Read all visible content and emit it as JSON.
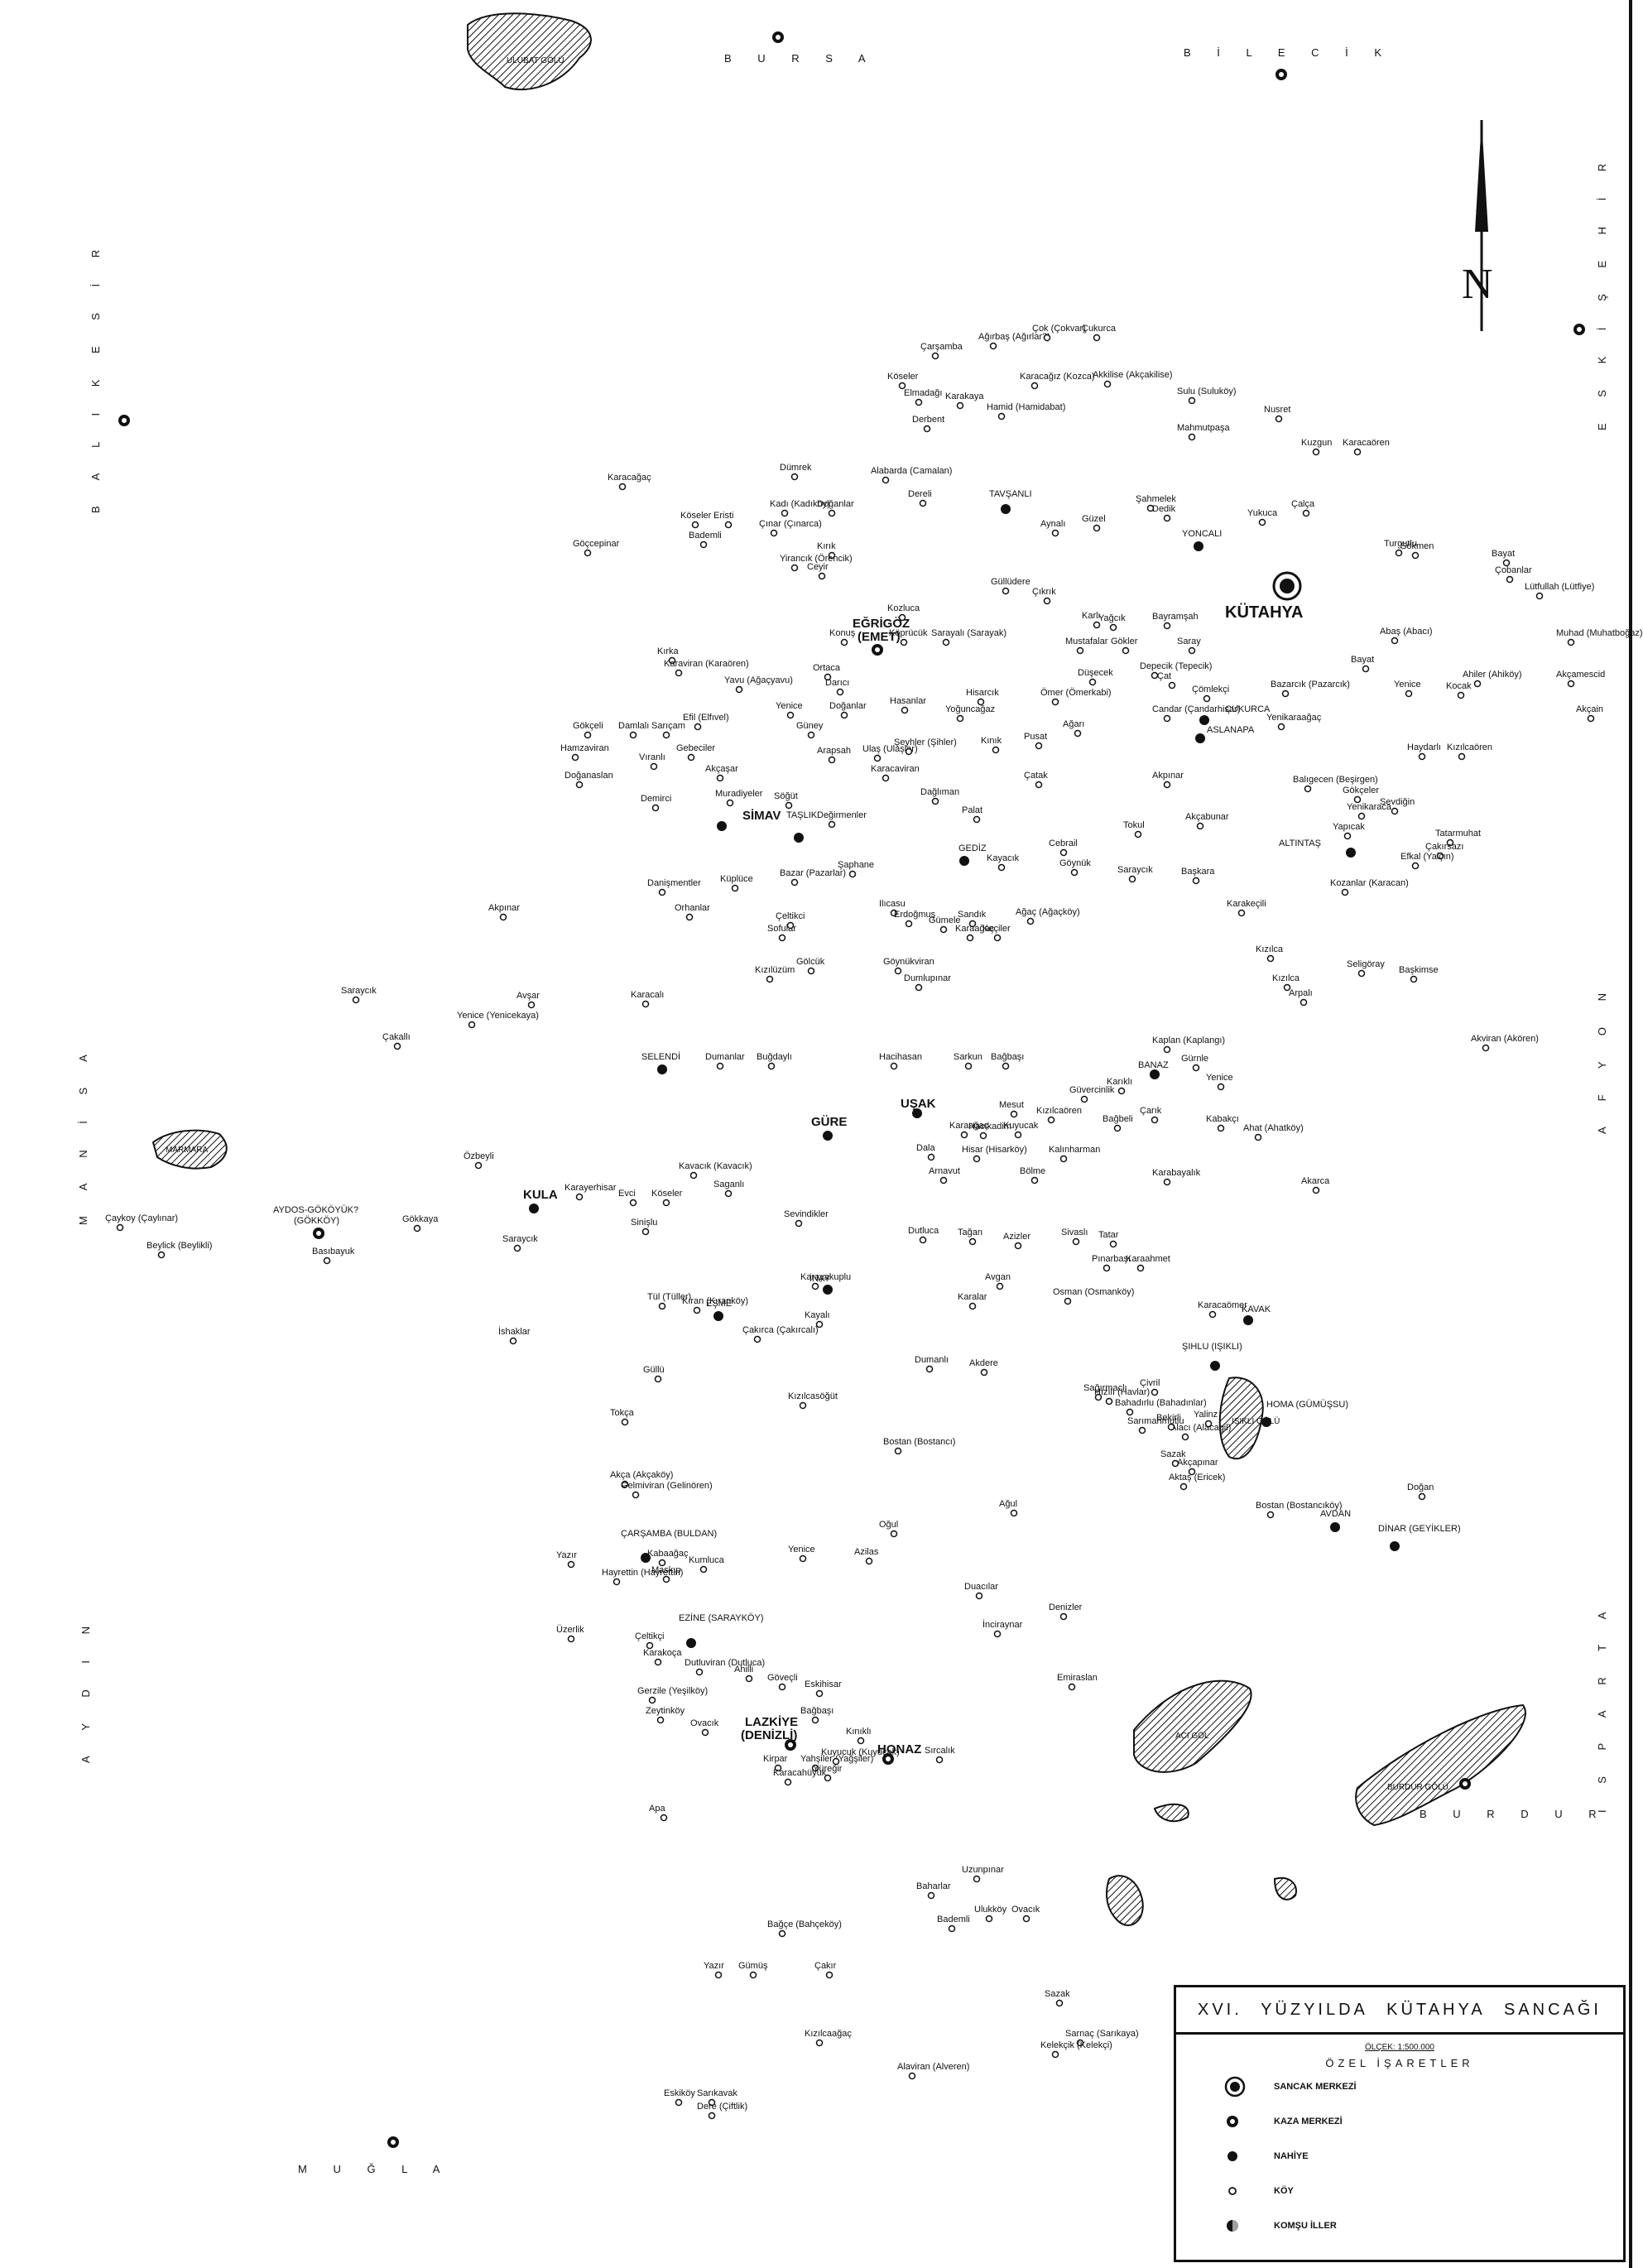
{
  "title_parts": [
    "XVI.",
    "YÜZYILDA",
    "KÜTAHYA",
    "SANCAĞI"
  ],
  "scale": "ÖLÇEK: 1:500.000",
  "legend_heading": "ÖZEL İŞARETLER",
  "legend_items": [
    {
      "symbol": "sancak-merkezi",
      "label": "SANCAK MERKEZİ"
    },
    {
      "symbol": "kaza-merkezi",
      "label": "KAZA MERKEZİ"
    },
    {
      "symbol": "nahiye",
      "label": "NAHİYE"
    },
    {
      "symbol": "koy",
      "label": "KÖY"
    },
    {
      "symbol": "komsu-iller",
      "label": "KOMŞU İLLER"
    }
  ],
  "north_label": "N",
  "neighbors": {
    "bursa": "B U R S A",
    "bilecik": "B İ L E C İ K",
    "eskisehir": "E S K İ Ş E H İ R",
    "balikesir": "B A L I K E S İ R",
    "manisa": "M A N İ S A",
    "aydin": "A Y D I N",
    "mugla": "M U Ğ L A",
    "afyon": "A F Y O N",
    "isparta": "I S P A R T A",
    "burdur": "B U R D U R"
  },
  "lakes": {
    "ulubat": "ULUBAT GÖLÜ",
    "marmara": "MARMARA",
    "acigol": "ACI GÖL",
    "burdur": "BURDUR GÖLÜ",
    "isikli": "IŞIKLI GÖLÜ"
  },
  "sancak_center": {
    "name": "KÜTAHYA"
  },
  "kaza_centers": [
    {
      "name": "EĞRİGÖZ",
      "alt": "(EMET)"
    },
    {
      "name": "AYDOS-GÖKÖYÜK?",
      "alt": "(GÖKKÖY)"
    },
    {
      "name": "LAZKİYE",
      "alt": "(DENİZLİ)"
    },
    {
      "name": "HONAZ",
      "alt": ""
    }
  ],
  "nahiyes": [
    {
      "name": "TAVŞANLI"
    },
    {
      "name": "YONCALI"
    },
    {
      "name": "ÇUKURCA"
    },
    {
      "name": "ASLANAPA"
    },
    {
      "name": "SİMAV"
    },
    {
      "name": "TAŞLIK"
    },
    {
      "name": "GEDİZ"
    },
    {
      "name": "ALTINTAŞ"
    },
    {
      "name": "SELENDİ"
    },
    {
      "name": "GÜRE"
    },
    {
      "name": "UŞAK"
    },
    {
      "name": "BANAZ"
    },
    {
      "name": "KULA"
    },
    {
      "name": "İNAY"
    },
    {
      "name": "EŞME"
    },
    {
      "name": "KAVAK"
    },
    {
      "name": "ŞIHLU (IŞIKLI)"
    },
    {
      "name": "HOMA (GÜMÜŞSU)"
    },
    {
      "name": "AVDAN"
    },
    {
      "name": "DİNAR (GEYİKLER)"
    },
    {
      "name": "ÇARŞAMBA (BULDAN)"
    },
    {
      "name": "EZİNE (SARAYKÖY)"
    }
  ],
  "villages": [
    "Ağırbaş (Ağırlar?)",
    "Çok (Çokvar)",
    "Çukurca",
    "Çarşamba",
    "Akkilise (Akçakilise)",
    "Köseler",
    "Elmadağı",
    "Karakaya",
    "Karacağız (Kozca)",
    "Hamid (Hamidabat)",
    "Derbent",
    "Sulu (Suluköy)",
    "Nusret",
    "Mahmutpaşa",
    "Karacaören",
    "Kuzgun",
    "Dümrek",
    "Alabarda (Camalan)",
    "Karacağaç",
    "Kadı (Kadıköy)",
    "Köseler",
    "Eristi",
    "Bademli",
    "Göçcepinar",
    "Doğanlar",
    "Çınar (Çınarca)",
    "Kırık",
    "Yirancık (Örencik)",
    "Ceyir",
    "Dereli",
    "Aynalı",
    "Güzel",
    "Şahmelek",
    "Dedik",
    "Yukuca",
    "Çalça",
    "Turgutlu",
    "Sökmen",
    "Bayat",
    "Çobanlar",
    "Lütfullah (Lütfiye)",
    "Güllüdere",
    "Çıkrık",
    "Karlı",
    "Kozluca",
    "Köprücük",
    "Sarayalı (Sarayak)",
    "Konuş",
    "Yağcık",
    "Bayramşah",
    "Mustafalar",
    "Gökler",
    "Saray",
    "Abaş (Abacı)",
    "Bayat",
    "Muhad (Muhatboğaz)",
    "Akçamescid",
    "Akçain",
    "Kırka",
    "Karaviran (Karaören)",
    "Yavu (Ağaçyavu)",
    "Ortaca",
    "Darıcı",
    "Yenice",
    "Doğanlar",
    "Hasanlar",
    "Hisarcık",
    "Yoğuncağaz",
    "Ömer (Ömerkabi)",
    "Düşecek",
    "Depecik (Tepecik)",
    "Çat",
    "Çömlekçi",
    "Bazarcık (Pazarcık)",
    "Yenice",
    "Kocak",
    "Ahiler (Ahiköy)",
    "Gökçeli",
    "Damlalı",
    "Sarıçam",
    "Efil (Elfıvel)",
    "Hamzaviran",
    "Gebeciler",
    "Vıranlı",
    "Güney",
    "Arapsah",
    "Ulaş (Ulaşlar)",
    "Şeyhler (Şihler)",
    "Kınık",
    "Pusat",
    "Ağarı",
    "Candar (Çandarhisar)",
    "Yenikaraağaç",
    "Haydarlı",
    "Kızılcaören",
    "Doğanaslan",
    "Akçaşar",
    "Karacaviran",
    "Çatak",
    "Akpınar",
    "Balıgecen (Beşirgen)",
    "Gökçeler",
    "Yenikaraca",
    "Sevdiğin",
    "Demirci",
    "Muradiyeler",
    "Söğüt",
    "Değirmenler",
    "Dağlıman",
    "Palat",
    "Tokul",
    "Akçabunar",
    "Yapıcak",
    "Tatarmuhat",
    "Çakırsazı",
    "Efkal (Yalçın)",
    "Danişmentler",
    "Küplüce",
    "Bazar (Pazarlar)",
    "Şaphane",
    "Kayacık",
    "Cebrail",
    "Göynük",
    "Saraycık",
    "Başkara",
    "Kozanlar (Karacan)",
    "Akpınar",
    "Orhanlar",
    "Sofular",
    "Çeltikci",
    "Ilıcasu",
    "Erdoğmuş",
    "Gümele",
    "Sandık",
    "Karaağaç",
    "Keçiler",
    "Ağaç (Ağaçköy)",
    "Karakeçili",
    "Kızılca",
    "Saraycık",
    "Avşar",
    "Yenice (Yenicekaya)",
    "Çakallı",
    "Karacalı",
    "Kızılüzüm",
    "Gölcük",
    "Göynükviran",
    "Dumlupınar",
    "Kızılca",
    "Arpalı",
    "Seligöray",
    "Başkimse",
    "Akviran (Akören)",
    "Buğdaylı",
    "Dumanlar",
    "Hacihasan",
    "Sarkun",
    "Bağbaşı",
    "Kaplan (Kaplangı)",
    "Gürnle",
    "Yenice",
    "Güvercinlik",
    "Mesut",
    "Karıklı",
    "Kızılcaören",
    "Hacıkadim",
    "Karaağaç",
    "Kuyucak",
    "Bağbeli",
    "Çarık",
    "Kabakçı",
    "Ahat (Ahatköy)",
    "Dala",
    "Hisar (Hisarköy)",
    "Kalınharman",
    "Bölme",
    "Arnavut",
    "Karabayalık",
    "Akarca",
    "Özbeyli",
    "Kavacık (Kavacık)",
    "Karayerhisar",
    "Evci",
    "Köseler",
    "Saganlı",
    "Gökkaya",
    "Çaykoy (Çaylınar)",
    "Beylick (Beylikli)",
    "Basıbayuk",
    "Saraycık",
    "Sinişlu",
    "Sevindikler",
    "Dutluca",
    "Tağan",
    "Azizler",
    "Sivaslı",
    "Tatar",
    "Pınarbaşı",
    "Karaahmet",
    "Karayakuplu",
    "Avgan",
    "Karalar",
    "Osman (Osmanköy)",
    "Karacaömer",
    "Tül (Tüller)",
    "Kıran (Kıranköy)",
    "Kayalı",
    "Çakırca (Çakırcalı)",
    "İshaklar",
    "Dumanlı",
    "Akdere",
    "Hızılı (Havlar)",
    "Güllü",
    "Kızılcasöğüt",
    "Çivril",
    "Sağırmaclı",
    "Bahadırlu (Bahadınlar)",
    "Sarımahmutlu",
    "Alacı (Alacagil)",
    "Bekirli",
    "Yalinz",
    "Tokça",
    "Bostan (Bostancı)",
    "Akça (Akçaköy)",
    "Gelmiviran (Gelinören)",
    "Sazak",
    "Akçapınar",
    "Aktaş (Ericek)",
    "Bostan (Bostancıköy)",
    "Doğan",
    "Ağul",
    "Oğul",
    "Yenice",
    "Yazır",
    "Hayrettin (Hayrettin)",
    "Kabaağaç",
    "Maskıp",
    "Kumluca",
    "Azilas",
    "Duacılar",
    "Denizler",
    "Üzerlik",
    "Çeltikçi",
    "Karakoça",
    "Dutluviran (Dutluca)",
    "İnciraynar",
    "Ahilli",
    "Göveçli",
    "Eskihisar",
    "Emiraslan",
    "Gerzile (Yeşilköy)",
    "Zeytinköy",
    "Ovacık",
    "Bağbaşı",
    "Kınıklı",
    "Kirpar",
    "Yahşiler (Yağşiler)",
    "Kuyucuk (Kuyucak)",
    "Yüreğir",
    "Karacahüyük",
    "Sırcalık",
    "Apa",
    "Uzunpınar",
    "Baharlar",
    "Ulukköy",
    "Ovacık",
    "Bademli",
    "Bağçe (Bahçeköy)",
    "Yazır",
    "Gümüş",
    "Çakır",
    "Sazak",
    "Kızılcaağaç",
    "Sarnaç (Sarıkaya)",
    "Kelekçik (Kelekçi)",
    "Alaviran (Alveren)",
    "Eskiköy",
    "Sarıkavak",
    "Dere (Çiftlik)"
  ]
}
